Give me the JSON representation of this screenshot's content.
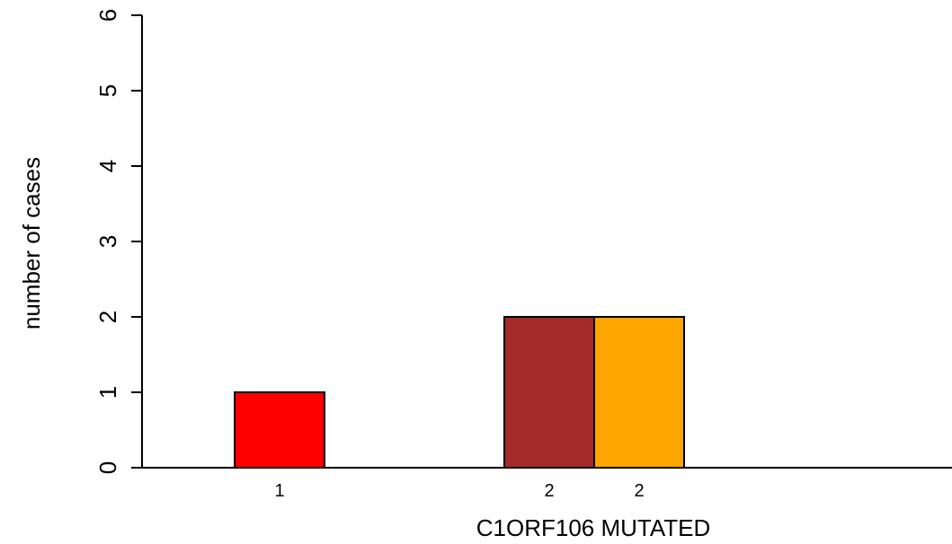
{
  "chart_data": {
    "type": "bar",
    "title": "",
    "xlabel": "C1ORF106 MUTATED",
    "ylabel": "number of cases",
    "ylim": [
      0,
      6
    ],
    "yticks": [
      0,
      1,
      2,
      3,
      4,
      5,
      6
    ],
    "grid": false,
    "legend": "none",
    "bars": [
      {
        "label": "1",
        "value": 1,
        "color": "#ff0000"
      },
      {
        "label": "2",
        "value": 2,
        "color": "#a52a2a"
      },
      {
        "label": "2",
        "value": 2,
        "color": "#ffa500"
      }
    ]
  }
}
